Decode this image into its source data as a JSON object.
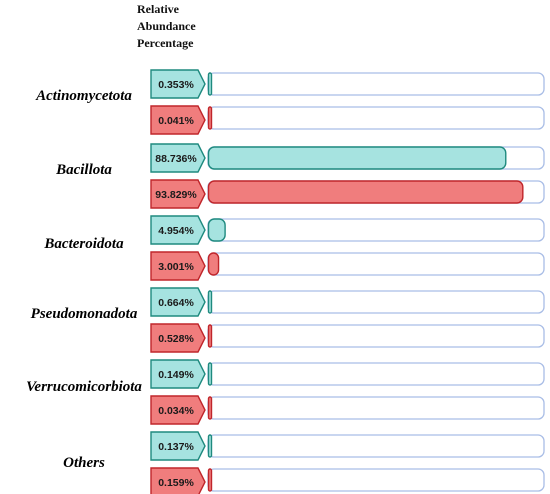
{
  "chart_data": {
    "type": "bar",
    "header": [
      "Relative",
      "Abundance",
      "Percentage"
    ],
    "max_value": 100,
    "colors": {
      "series1_fill": "#a6e3e0",
      "series1_stroke": "#1f8a7f",
      "series2_fill": "#f07d7d",
      "series2_stroke": "#c0262b",
      "track_stroke": "#a9bde6",
      "track_fill": "#ffffff"
    },
    "categories": [
      "Actinomycetota",
      "Bacillota",
      "Bacteroidota",
      "Pseudomonadota",
      "Verrucomicorbiota",
      "Others"
    ],
    "series": [
      {
        "values": [
          0.353,
          88.736,
          4.954,
          0.664,
          0.149,
          0.137
        ],
        "labels": [
          "0.353%",
          "88.736%",
          "4.954%",
          "0.664%",
          "0.149%",
          "0.137%"
        ]
      },
      {
        "values": [
          0.041,
          93.829,
          3.001,
          0.528,
          0.034,
          0.159
        ],
        "labels": [
          "0.041%",
          "93.829%",
          "3.001%",
          "0.528%",
          "0.034%",
          "0.159%"
        ]
      }
    ]
  }
}
